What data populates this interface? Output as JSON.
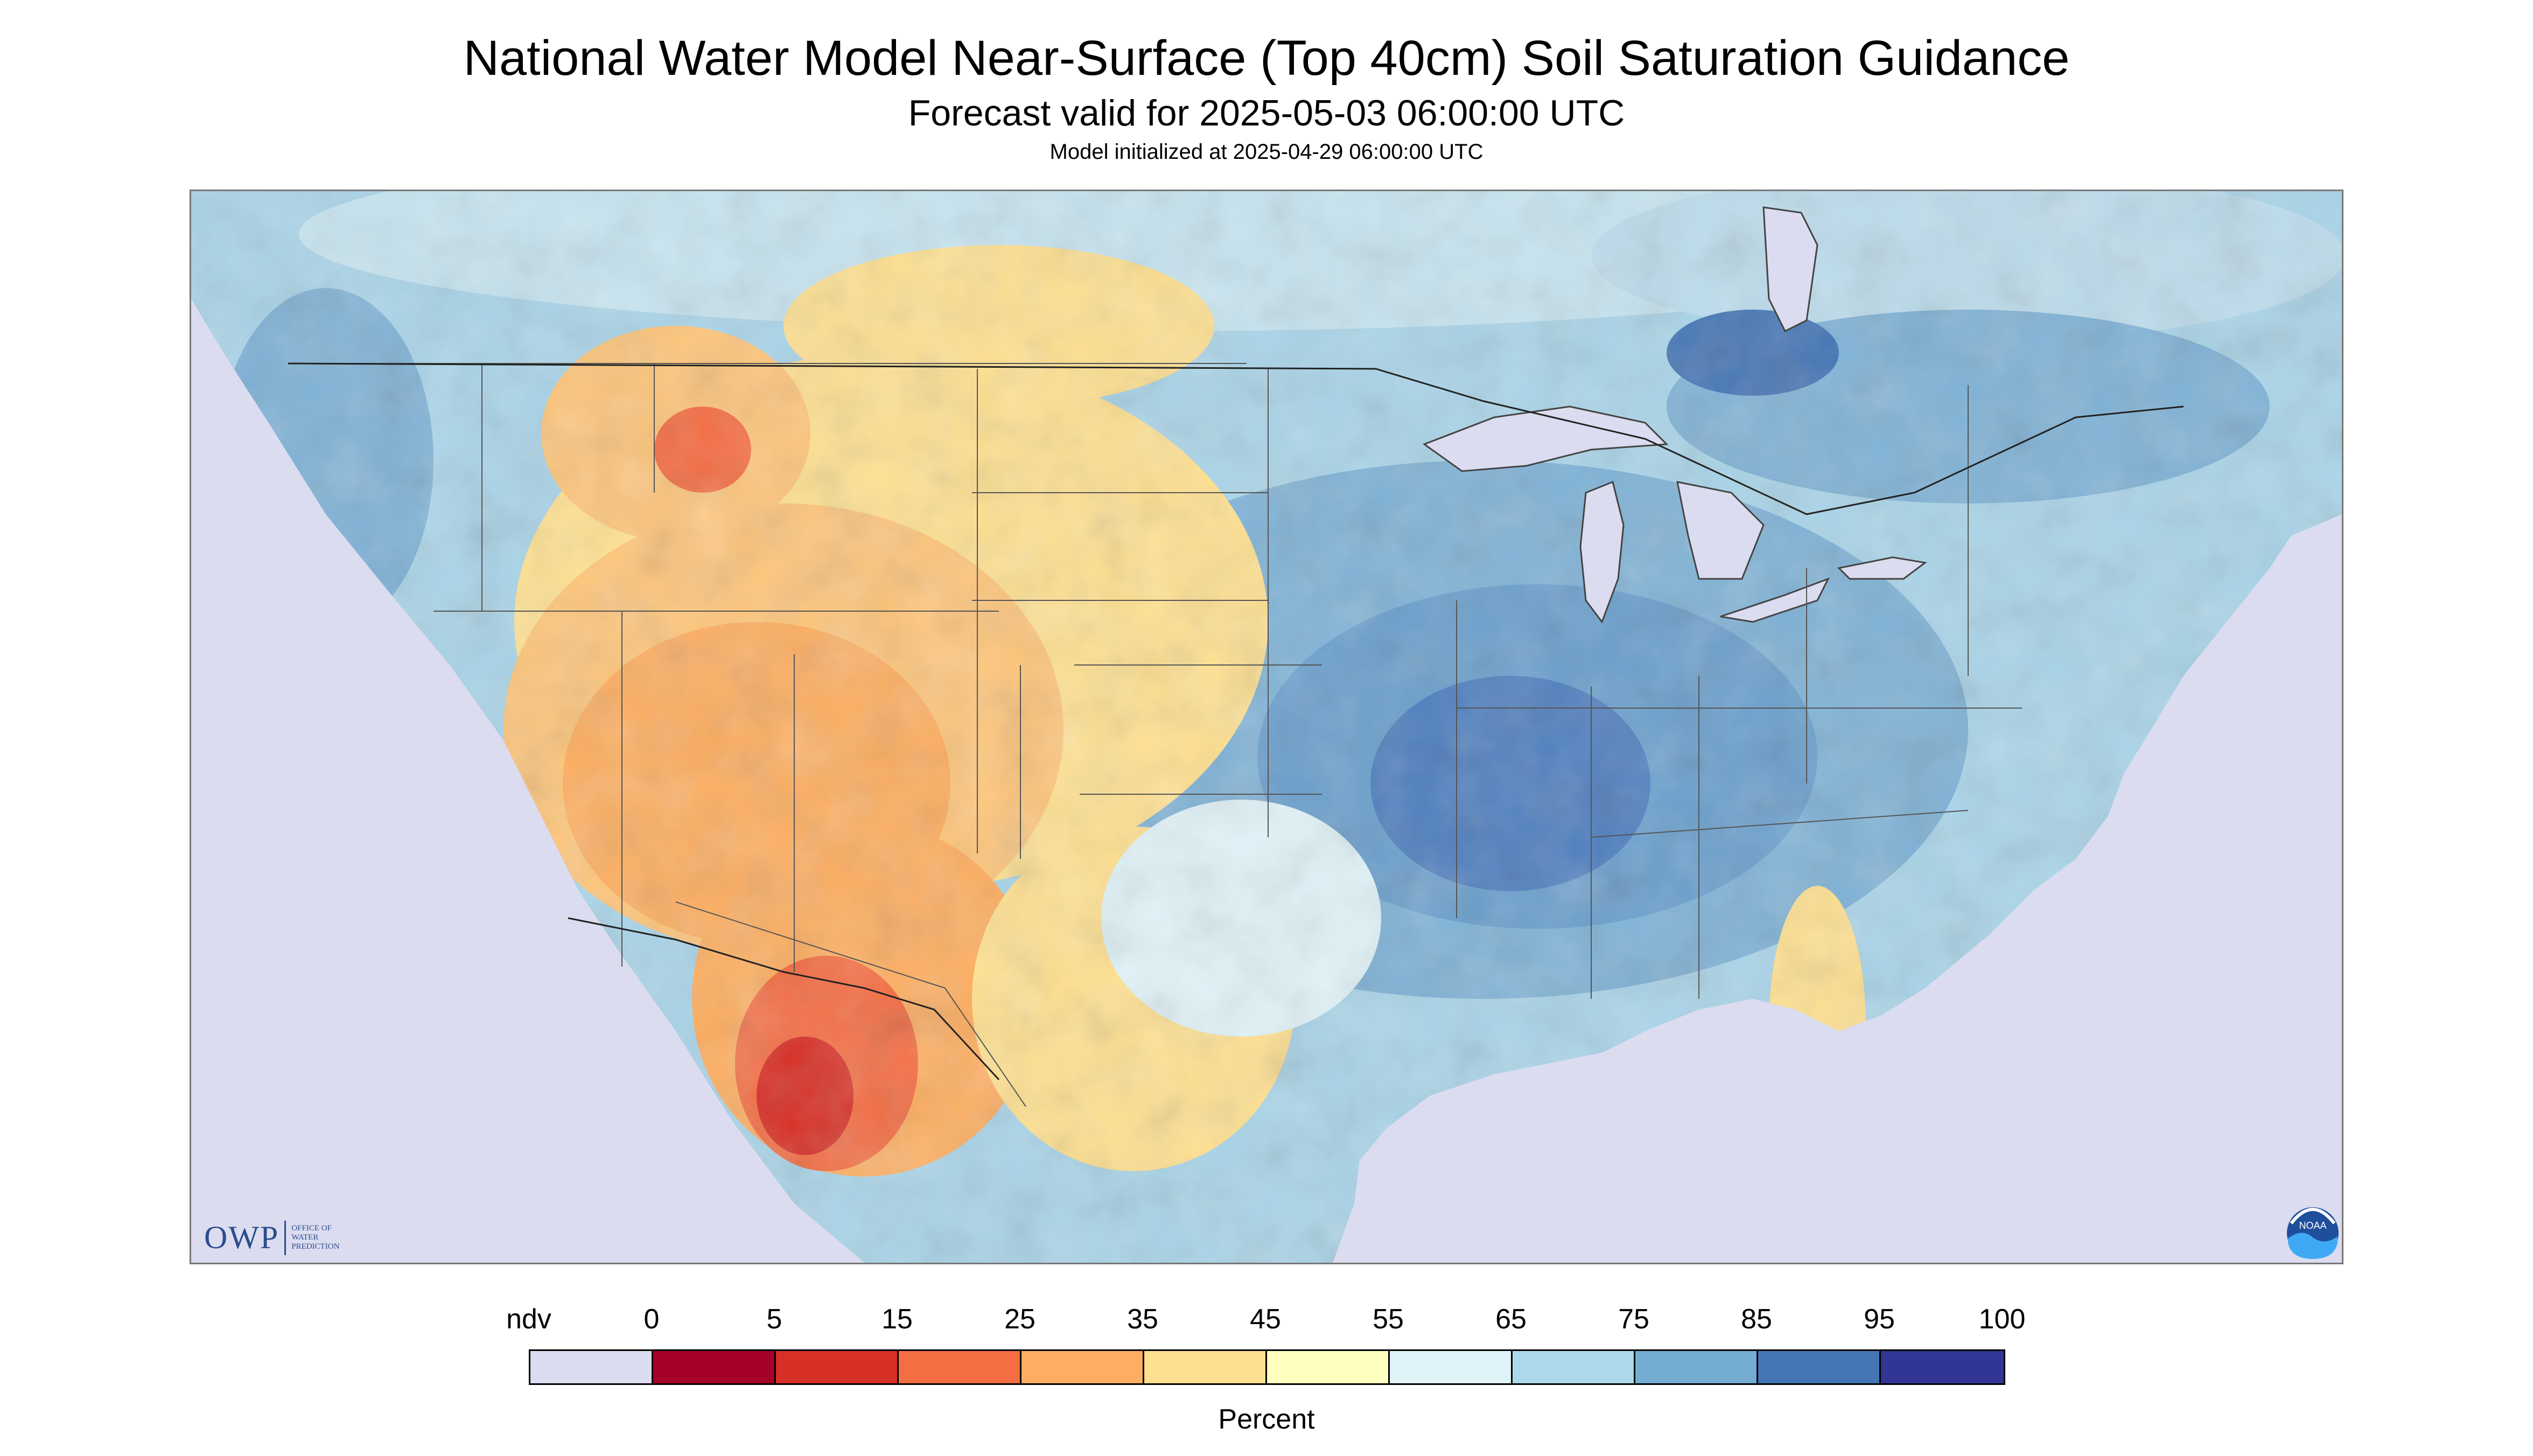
{
  "title": "National Water Model Near-Surface (Top 40cm) Soil Saturation Guidance",
  "subtitle": "Forecast valid for 2025-05-03 06:00:00 UTC",
  "initialized": "Model initialized at 2025-04-29 06:00:00 UTC",
  "logo_owp": {
    "abbr": "OWP",
    "line1": "OFFICE OF",
    "line2": "WATER",
    "line3": "PREDICTION"
  },
  "logo_noaa": "NOAA",
  "legend": {
    "ndv_label": "ndv",
    "ndv_color": "#dcdcf0",
    "ticks": [
      "0",
      "5",
      "15",
      "25",
      "35",
      "45",
      "55",
      "65",
      "75",
      "85",
      "95",
      "100"
    ],
    "colors": [
      "#a50026",
      "#d73027",
      "#f46d43",
      "#fdae61",
      "#fee090",
      "#ffffbf",
      "#e0f3f8",
      "#abd9e9",
      "#74add1",
      "#4575b4",
      "#313695"
    ],
    "units": "Percent"
  },
  "colors": {
    "water": "#dcdcf0",
    "border": "#555555"
  }
}
